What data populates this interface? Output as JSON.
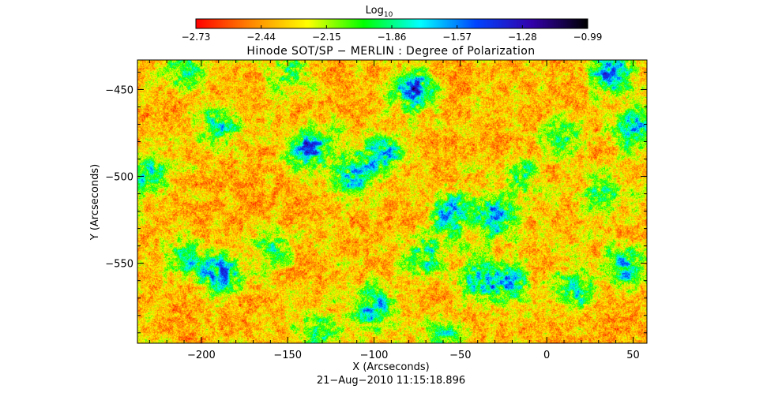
{
  "chart_data": {
    "type": "heatmap",
    "title": "Hinode SOT/SP − MERLIN : Degree of Polarization",
    "xlabel": "X (Arcseconds)",
    "ylabel": "Y (Arcseconds)",
    "colorbar": {
      "label_base": "Log",
      "label_sub": "10",
      "min": -2.73,
      "max": -0.99,
      "ticks": [
        "−2.73",
        "−2.44",
        "−2.15",
        "−1.86",
        "−1.57",
        "−1.28",
        "−0.99"
      ],
      "colormap": [
        "#ff0000",
        "#ff8800",
        "#ffff00",
        "#00ff00",
        "#00ffff",
        "#0044ff",
        "#3300aa",
        "#000000"
      ]
    },
    "xlim": [
      -237,
      58
    ],
    "ylim": [
      -596,
      -433
    ],
    "xticks": [
      -200,
      -150,
      -100,
      -50,
      0,
      50
    ],
    "xtick_labels": [
      "−200",
      "−150",
      "−100",
      "−50",
      "0",
      "50"
    ],
    "yticks": [
      -450,
      -500,
      -550
    ],
    "ytick_labels": [
      "−450",
      "−500",
      "−550"
    ],
    "timestamp": "21−Aug−2010 11:15:18.896",
    "network_features": [
      {
        "x": -77,
        "y": -450,
        "strength": 1.0
      },
      {
        "x": -190,
        "y": -556,
        "strength": 0.9
      },
      {
        "x": -100,
        "y": -576,
        "strength": 0.95
      },
      {
        "x": -137,
        "y": -484,
        "strength": 0.9
      },
      {
        "x": -55,
        "y": -521,
        "strength": 0.85
      },
      {
        "x": -30,
        "y": -523,
        "strength": 0.8
      },
      {
        "x": 37,
        "y": -440,
        "strength": 0.9
      },
      {
        "x": 52,
        "y": -472,
        "strength": 0.85
      },
      {
        "x": -22,
        "y": -562,
        "strength": 0.8
      },
      {
        "x": -112,
        "y": -500,
        "strength": 0.7
      },
      {
        "x": -95,
        "y": -487,
        "strength": 0.7
      },
      {
        "x": -190,
        "y": -471,
        "strength": 0.55
      },
      {
        "x": -210,
        "y": -545,
        "strength": 0.5
      },
      {
        "x": -230,
        "y": -500,
        "strength": 0.6
      },
      {
        "x": -70,
        "y": -545,
        "strength": 0.65
      },
      {
        "x": -40,
        "y": -560,
        "strength": 0.6
      },
      {
        "x": 10,
        "y": -478,
        "strength": 0.55
      },
      {
        "x": 30,
        "y": -510,
        "strength": 0.6
      },
      {
        "x": 45,
        "y": -552,
        "strength": 0.75
      },
      {
        "x": 15,
        "y": -565,
        "strength": 0.6
      },
      {
        "x": -160,
        "y": -540,
        "strength": 0.5
      },
      {
        "x": -130,
        "y": -590,
        "strength": 0.55
      },
      {
        "x": -60,
        "y": -590,
        "strength": 0.5
      },
      {
        "x": -15,
        "y": -500,
        "strength": 0.5
      },
      {
        "x": -150,
        "y": -440,
        "strength": 0.45
      },
      {
        "x": -210,
        "y": -440,
        "strength": 0.5
      }
    ]
  }
}
